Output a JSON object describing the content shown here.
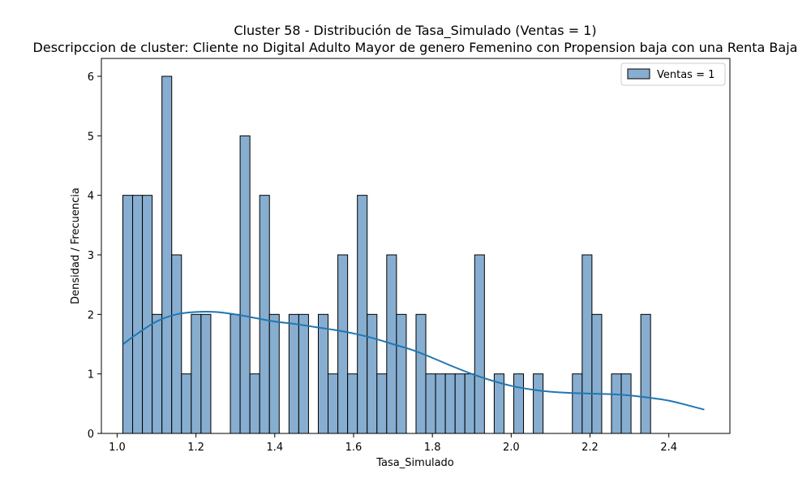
{
  "chart_data": {
    "type": "bar",
    "title": "Cluster 58 - Distribución de Tasa_Simulado (Ventas = 1)",
    "subtitle": "Descripccion de cluster: Cliente no Digital Adulto Mayor de genero Femenino con Propension baja con una Renta Baja",
    "xlabel": "Tasa_Simulado",
    "ylabel": "Densidad / Frecuencia",
    "xlim": [
      0.96,
      2.555
    ],
    "ylim": [
      0,
      6.3
    ],
    "xticks": [
      "1.0",
      "1.2",
      "1.4",
      "1.6",
      "1.8",
      "2.0",
      "2.2",
      "2.4"
    ],
    "xtick_values": [
      1.0,
      1.2,
      1.4,
      1.6,
      1.8,
      2.0,
      2.2,
      2.4
    ],
    "yticks": [
      "0",
      "1",
      "2",
      "3",
      "4",
      "5",
      "6"
    ],
    "ytick_values": [
      0,
      1,
      2,
      3,
      4,
      5,
      6
    ],
    "bin_start": 1.0145,
    "bin_width": 0.0248,
    "counts": [
      4,
      4,
      4,
      2,
      6,
      3,
      1,
      2,
      2,
      0,
      0,
      2,
      5,
      1,
      4,
      2,
      0,
      2,
      2,
      0,
      2,
      1,
      3,
      1,
      4,
      2,
      1,
      3,
      2,
      0,
      2,
      1,
      1,
      1,
      1,
      1,
      3,
      0,
      1,
      0,
      1,
      0,
      1,
      0,
      0,
      0,
      1,
      3,
      2,
      0,
      1,
      1,
      0,
      2
    ],
    "kde": {
      "x": [
        1.015,
        1.05,
        1.1,
        1.15,
        1.2,
        1.25,
        1.3,
        1.35,
        1.4,
        1.45,
        1.5,
        1.55,
        1.6,
        1.65,
        1.7,
        1.75,
        1.8,
        1.85,
        1.9,
        1.95,
        2.0,
        2.05,
        2.1,
        2.15,
        2.2,
        2.25,
        2.3,
        2.35,
        2.4,
        2.45,
        2.49
      ],
      "y": [
        1.5,
        1.67,
        1.88,
        2.0,
        2.04,
        2.04,
        2.0,
        1.94,
        1.88,
        1.84,
        1.79,
        1.74,
        1.68,
        1.6,
        1.5,
        1.4,
        1.27,
        1.13,
        1.0,
        0.89,
        0.8,
        0.74,
        0.7,
        0.68,
        0.67,
        0.66,
        0.64,
        0.6,
        0.55,
        0.47,
        0.4
      ]
    },
    "legend": {
      "label": "Ventas = 1",
      "placement": "top-right"
    },
    "grid": false,
    "colors": {
      "bar_fill": "#87aed0",
      "bar_edge": "#000000",
      "kde_line": "#1f77b4"
    }
  }
}
